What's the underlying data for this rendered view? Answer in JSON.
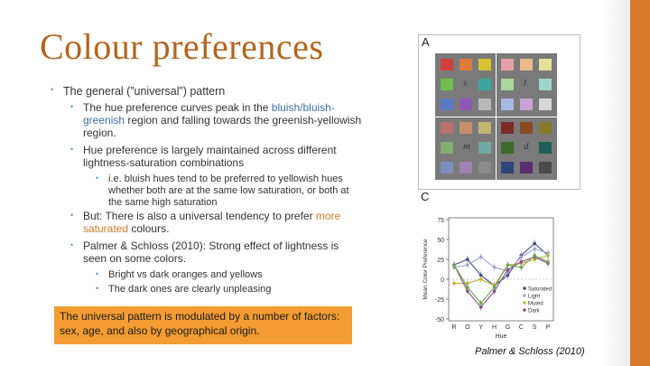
{
  "slide": {
    "title": "Colour preferences",
    "bullets": {
      "b1": "The general (”universal”) pattern",
      "b1a_pre": "The hue preference curves peak in the ",
      "b1a_blue": "bluish/bluish-greenish",
      "b1a_post": " region and falling towards the greenish-yellowish region.",
      "b1b": "Hue preference is largely maintained across different lightness-saturation combinations",
      "b1b_i": "i.e. bluish hues tend to be preferred to yellowish hues whether both are at the same low saturation, or both at the same high saturation",
      "b1c_pre": "But: There is also a universal tendency to prefer ",
      "b1c_orange1": "more",
      "b1c_orange2": "saturated",
      "b1c_post": " colours.",
      "b1d": "Palmer & Schloss (2010): Strong effect of lightness is seen on some colors.",
      "b1d_i": "Bright vs dark oranges and yellows",
      "b1d_ii": "The dark ones are clearly unpleasing"
    },
    "callout": "The universal pattern is modulated by a number of factors: sex, age, and also by geographical origin.",
    "citation": "Palmer & Schloss (2010)"
  },
  "figure": {
    "panel_a_label": "A",
    "panel_c_label": "C",
    "quadrant_symbols": [
      "s",
      "l",
      "m",
      "d"
    ],
    "swatch_colors": {
      "s": [
        "#d0403e",
        "#e07a35",
        "#d9c233",
        "#6fbf4e",
        "#3ca5a0",
        "#5b78c7",
        "#8f58b6",
        "#b8b8b8"
      ],
      "l": [
        "#e6a0a7",
        "#e9bb8c",
        "#e8e09a",
        "#aad79a",
        "#9fd4cf",
        "#a8b8e4",
        "#c9a2d6",
        "#d8d8d8"
      ],
      "m": [
        "#b9706f",
        "#c58f6b",
        "#c2b56e",
        "#86ad74",
        "#6fa7a3",
        "#7d8fbd",
        "#9f82b1",
        "#8c8c8c"
      ],
      "d": [
        "#7e2929",
        "#8b4a24",
        "#877b25",
        "#3e6b2c",
        "#1f5e5a",
        "#2f4579",
        "#5b2f6f",
        "#4a4a4a"
      ]
    },
    "accent_colors": {
      "orange": "#d87a2a",
      "blue": "#3d6fa6"
    }
  },
  "chart_data": {
    "type": "line",
    "categories": [
      "R",
      "O",
      "Y",
      "H",
      "G",
      "C",
      "S",
      "P"
    ],
    "xlabel": "Hue",
    "ylabel": "Mean Color Preference",
    "ylim": [
      -50,
      75
    ],
    "yticks": [
      -50,
      -25,
      0,
      25,
      50,
      75
    ],
    "legend_position": "bottom-right",
    "series": [
      {
        "name": "Saturated",
        "color": "#3f4a8a",
        "values": [
          18,
          25,
          5,
          -8,
          5,
          30,
          45,
          30
        ]
      },
      {
        "name": "Light",
        "color": "#9ba7c8",
        "values": [
          15,
          18,
          28,
          15,
          10,
          28,
          38,
          33
        ]
      },
      {
        "name": "Muted",
        "color": "#c9b13a",
        "values": [
          -5,
          -5,
          0,
          -8,
          18,
          20,
          25,
          30
        ]
      },
      {
        "name": "Dark",
        "color": "#8a4a8a",
        "values": [
          18,
          -15,
          -35,
          -15,
          12,
          22,
          28,
          20
        ]
      },
      {
        "name": "",
        "color": "#6aa84f",
        "values": [
          18,
          -10,
          -30,
          -10,
          18,
          15,
          30,
          22
        ]
      }
    ]
  }
}
